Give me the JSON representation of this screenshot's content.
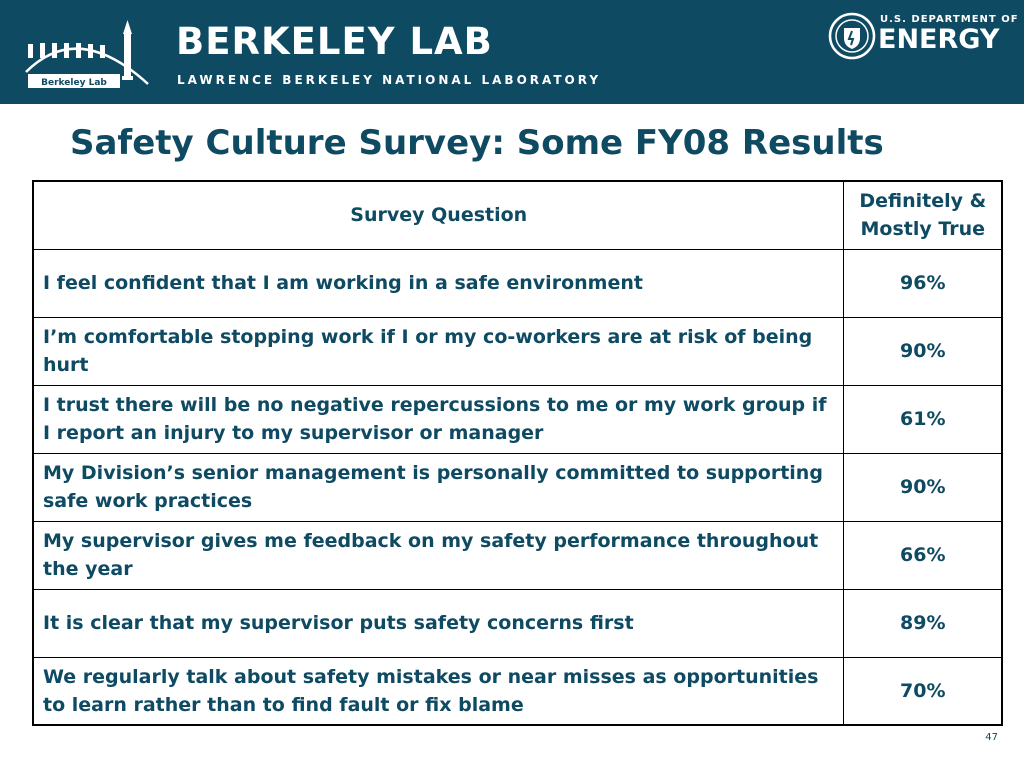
{
  "header": {
    "logo_badge": "Berkeley Lab",
    "lab_name": "BERKELEY LAB",
    "lab_subname": "LAWRENCE BERKELEY NATIONAL LABORATORY",
    "doe_line1": "U.S. DEPARTMENT OF",
    "doe_line2": "ENERGY",
    "background_color": "#0f4a63"
  },
  "slide": {
    "title": "Safety Culture Survey: Some FY08 Results",
    "text_color": "#0f4a63",
    "page_number": "47"
  },
  "table": {
    "headers": [
      "Survey Question",
      "Definitely & Mostly True"
    ],
    "rows": [
      {
        "question": "I feel confident that I am working in a safe environment",
        "value": "96%"
      },
      {
        "question": "I’m comfortable stopping work if I or my co-workers are at risk of being hurt",
        "value": "90%"
      },
      {
        "question": "I trust there will be no negative repercussions to me or my work group if I report an injury to my supervisor or manager",
        "value": "61%"
      },
      {
        "question": "My Division’s senior management is personally committed to supporting safe work practices",
        "value": "90%"
      },
      {
        "question": "My supervisor gives me feedback on my safety performance throughout the year",
        "value": "66%"
      },
      {
        "question": "It is clear that my supervisor puts safety concerns first",
        "value": "89%"
      },
      {
        "question": "We regularly talk about safety mistakes or near misses as opportunities to learn rather than to find fault or fix blame",
        "value": "70%"
      }
    ]
  }
}
